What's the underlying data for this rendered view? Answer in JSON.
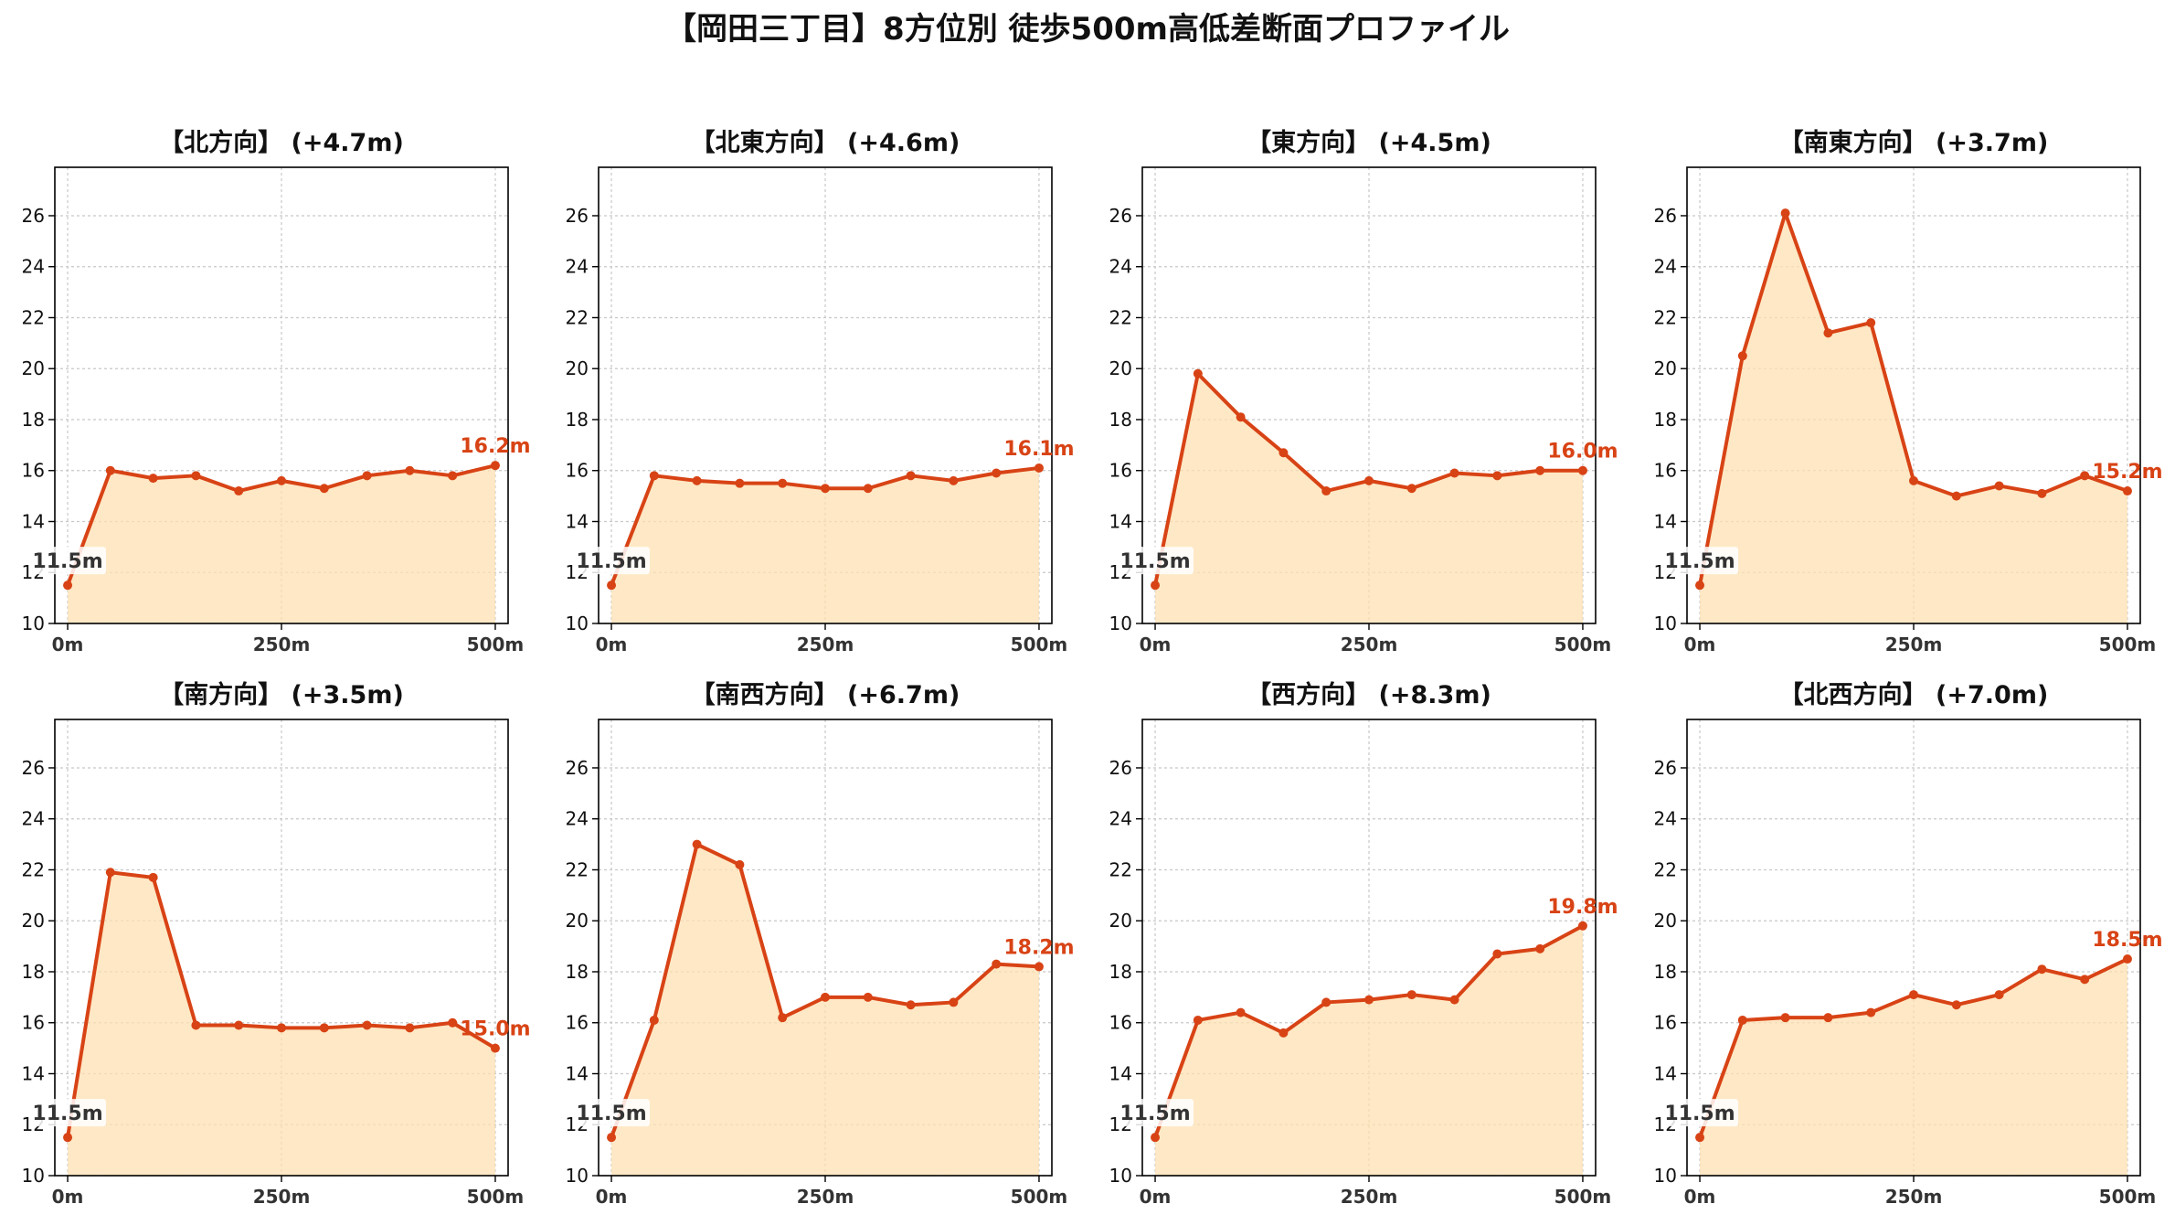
{
  "page_title": "【岡田三丁目】8方位別 徒歩500m高低差断面プロファイル",
  "colors": {
    "line": "#d84315",
    "fill": "#ffe0b2",
    "start_label": "#333333",
    "end_label": "#d84315",
    "grid": "#c8c8c8",
    "axis": "#000000"
  },
  "chart_data": [
    {
      "type": "area",
      "title": "【北方向】 (+4.7m)",
      "x": [
        0,
        50,
        100,
        150,
        200,
        250,
        300,
        350,
        400,
        450,
        500
      ],
      "y": [
        11.5,
        16.0,
        15.7,
        15.8,
        15.2,
        15.6,
        15.3,
        15.8,
        16.0,
        15.8,
        16.2
      ],
      "xticks": [
        0,
        250,
        500
      ],
      "xtick_labels": [
        "0m",
        "250m",
        "500m"
      ],
      "yticks": [
        10,
        12,
        14,
        16,
        18,
        20,
        22,
        24,
        26
      ],
      "ylim": [
        10,
        27.9
      ],
      "xlim": [
        -15,
        515
      ],
      "start_label": "11.5m",
      "end_label": "16.2m",
      "grid": true
    },
    {
      "type": "area",
      "title": "【北東方向】 (+4.6m)",
      "x": [
        0,
        50,
        100,
        150,
        200,
        250,
        300,
        350,
        400,
        450,
        500
      ],
      "y": [
        11.5,
        15.8,
        15.6,
        15.5,
        15.5,
        15.3,
        15.3,
        15.8,
        15.6,
        15.9,
        16.1
      ],
      "xticks": [
        0,
        250,
        500
      ],
      "xtick_labels": [
        "0m",
        "250m",
        "500m"
      ],
      "yticks": [
        10,
        12,
        14,
        16,
        18,
        20,
        22,
        24,
        26
      ],
      "ylim": [
        10,
        27.9
      ],
      "xlim": [
        -15,
        515
      ],
      "start_label": "11.5m",
      "end_label": "16.1m",
      "grid": true
    },
    {
      "type": "area",
      "title": "【東方向】 (+4.5m)",
      "x": [
        0,
        50,
        100,
        150,
        200,
        250,
        300,
        350,
        400,
        450,
        500
      ],
      "y": [
        11.5,
        19.8,
        18.1,
        16.7,
        15.2,
        15.6,
        15.3,
        15.9,
        15.8,
        16.0,
        16.0
      ],
      "xticks": [
        0,
        250,
        500
      ],
      "xtick_labels": [
        "0m",
        "250m",
        "500m"
      ],
      "yticks": [
        10,
        12,
        14,
        16,
        18,
        20,
        22,
        24,
        26
      ],
      "ylim": [
        10,
        27.9
      ],
      "xlim": [
        -15,
        515
      ],
      "start_label": "11.5m",
      "end_label": "16.0m",
      "grid": true
    },
    {
      "type": "area",
      "title": "【南東方向】 (+3.7m)",
      "x": [
        0,
        50,
        100,
        150,
        200,
        250,
        300,
        350,
        400,
        450,
        500
      ],
      "y": [
        11.5,
        20.5,
        26.1,
        21.4,
        21.8,
        15.6,
        15.0,
        15.4,
        15.1,
        15.8,
        15.2
      ],
      "xticks": [
        0,
        250,
        500
      ],
      "xtick_labels": [
        "0m",
        "250m",
        "500m"
      ],
      "yticks": [
        10,
        12,
        14,
        16,
        18,
        20,
        22,
        24,
        26
      ],
      "ylim": [
        10,
        27.9
      ],
      "xlim": [
        -15,
        515
      ],
      "start_label": "11.5m",
      "end_label": "15.2m",
      "grid": true
    },
    {
      "type": "area",
      "title": "【南方向】 (+3.5m)",
      "x": [
        0,
        50,
        100,
        150,
        200,
        250,
        300,
        350,
        400,
        450,
        500
      ],
      "y": [
        11.5,
        21.9,
        21.7,
        15.9,
        15.9,
        15.8,
        15.8,
        15.9,
        15.8,
        16.0,
        15.0
      ],
      "xticks": [
        0,
        250,
        500
      ],
      "xtick_labels": [
        "0m",
        "250m",
        "500m"
      ],
      "yticks": [
        10,
        12,
        14,
        16,
        18,
        20,
        22,
        24,
        26
      ],
      "ylim": [
        10,
        27.9
      ],
      "xlim": [
        -15,
        515
      ],
      "start_label": "11.5m",
      "end_label": "15.0m",
      "grid": true
    },
    {
      "type": "area",
      "title": "【南西方向】 (+6.7m)",
      "x": [
        0,
        50,
        100,
        150,
        200,
        250,
        300,
        350,
        400,
        450,
        500
      ],
      "y": [
        11.5,
        16.1,
        23.0,
        22.2,
        16.2,
        17.0,
        17.0,
        16.7,
        16.8,
        18.3,
        18.2
      ],
      "xticks": [
        0,
        250,
        500
      ],
      "xtick_labels": [
        "0m",
        "250m",
        "500m"
      ],
      "yticks": [
        10,
        12,
        14,
        16,
        18,
        20,
        22,
        24,
        26
      ],
      "ylim": [
        10,
        27.9
      ],
      "xlim": [
        -15,
        515
      ],
      "start_label": "11.5m",
      "end_label": "18.2m",
      "grid": true
    },
    {
      "type": "area",
      "title": "【西方向】 (+8.3m)",
      "x": [
        0,
        50,
        100,
        150,
        200,
        250,
        300,
        350,
        400,
        450,
        500
      ],
      "y": [
        11.5,
        16.1,
        16.4,
        15.6,
        16.8,
        16.9,
        17.1,
        16.9,
        18.7,
        18.9,
        19.8
      ],
      "xticks": [
        0,
        250,
        500
      ],
      "xtick_labels": [
        "0m",
        "250m",
        "500m"
      ],
      "yticks": [
        10,
        12,
        14,
        16,
        18,
        20,
        22,
        24,
        26
      ],
      "ylim": [
        10,
        27.9
      ],
      "xlim": [
        -15,
        515
      ],
      "start_label": "11.5m",
      "end_label": "19.8m",
      "grid": true
    },
    {
      "type": "area",
      "title": "【北西方向】 (+7.0m)",
      "x": [
        0,
        50,
        100,
        150,
        200,
        250,
        300,
        350,
        400,
        450,
        500
      ],
      "y": [
        11.5,
        16.1,
        16.2,
        16.2,
        16.4,
        17.1,
        16.7,
        17.1,
        18.1,
        17.7,
        18.5
      ],
      "xticks": [
        0,
        250,
        500
      ],
      "xtick_labels": [
        "0m",
        "250m",
        "500m"
      ],
      "yticks": [
        10,
        12,
        14,
        16,
        18,
        20,
        22,
        24,
        26
      ],
      "ylim": [
        10,
        27.9
      ],
      "xlim": [
        -15,
        515
      ],
      "start_label": "11.5m",
      "end_label": "18.5m",
      "grid": true
    }
  ]
}
